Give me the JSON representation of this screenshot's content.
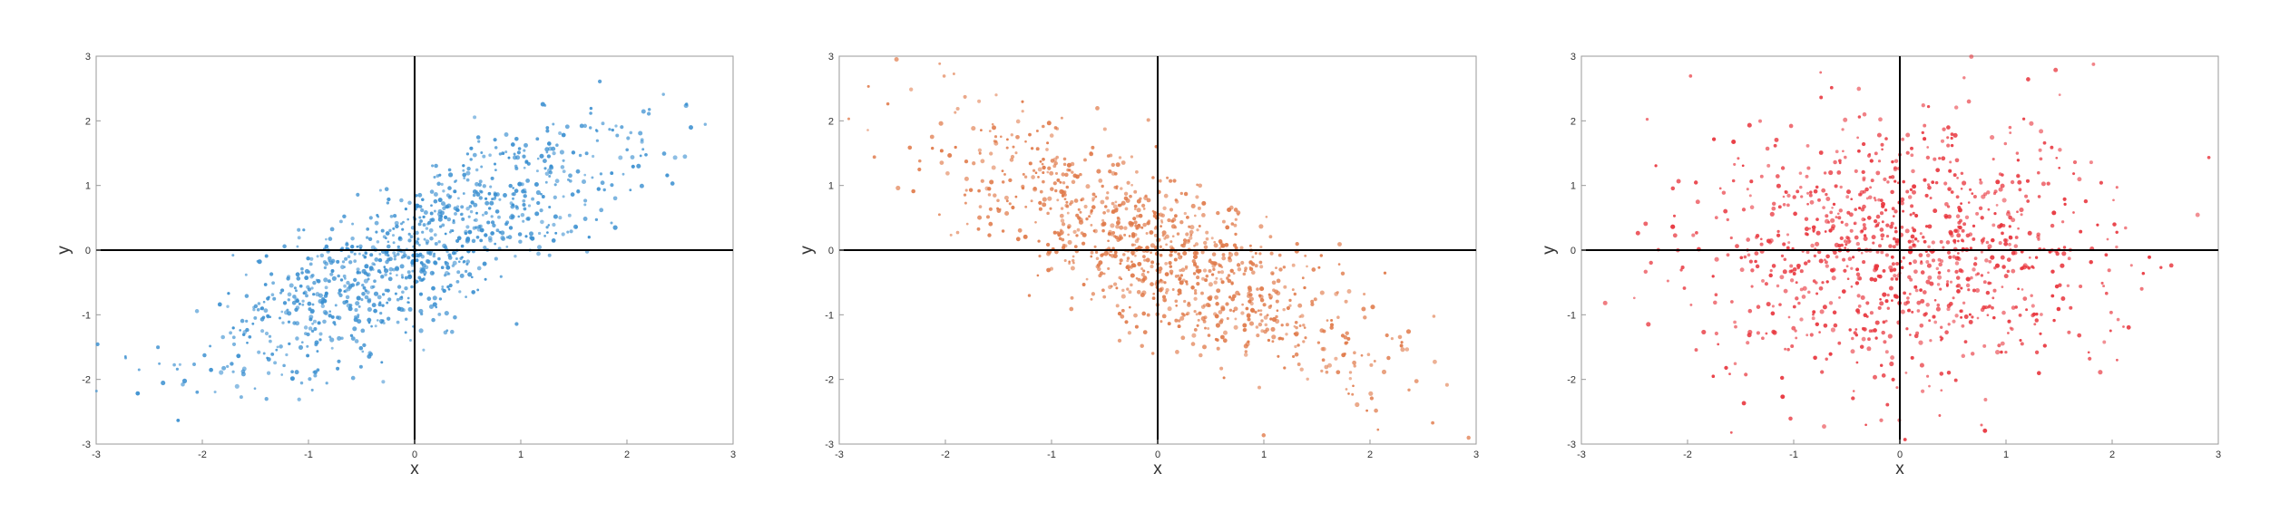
{
  "chart_data": [
    {
      "type": "scatter",
      "title": "",
      "xlabel": "x",
      "ylabel": "y",
      "xlim": [
        -3,
        3
      ],
      "ylim": [
        -3,
        3
      ],
      "xticks": [
        "-3",
        "-2",
        "-1",
        "0",
        "1",
        "2",
        "3"
      ],
      "yticks": [
        "-3",
        "-2",
        "-1",
        "0",
        "1",
        "2",
        "3"
      ],
      "grid": false,
      "legend": "none",
      "color": "#3a8fd0",
      "n_points": 1000,
      "correlation": 0.8,
      "series": [
        {
          "x": [
            -2.6,
            -2.3,
            -1.8,
            -1.2,
            -0.7,
            -0.2,
            0.0,
            0.3,
            0.8,
            1.3,
            1.8,
            2.4
          ],
          "y": [
            -2.3,
            -2.1,
            -1.5,
            -1.1,
            -0.6,
            -0.1,
            0.0,
            0.4,
            0.7,
            1.0,
            1.5,
            2.5
          ]
        }
      ]
    },
    {
      "type": "scatter",
      "title": "",
      "xlabel": "x",
      "ylabel": "y",
      "xlim": [
        -3,
        3
      ],
      "ylim": [
        -3,
        3
      ],
      "xticks": [
        "-3",
        "-2",
        "-1",
        "0",
        "1",
        "2",
        "3"
      ],
      "yticks": [
        "-3",
        "-2",
        "-1",
        "0",
        "1",
        "2",
        "3"
      ],
      "grid": false,
      "legend": "none",
      "color": "#e07a4a",
      "n_points": 1000,
      "correlation": -0.8,
      "series": [
        {
          "x": [
            -2.9,
            -2.4,
            -1.8,
            -1.2,
            -0.7,
            -0.2,
            0.0,
            0.3,
            0.8,
            1.3,
            1.8,
            2.4
          ],
          "y": [
            2.6,
            2.2,
            1.7,
            1.1,
            0.7,
            0.2,
            0.0,
            -0.4,
            -0.7,
            -1.1,
            -1.6,
            -2.6
          ]
        }
      ]
    },
    {
      "type": "scatter",
      "title": "",
      "xlabel": "x",
      "ylabel": "y",
      "xlim": [
        -3,
        3
      ],
      "ylim": [
        -3,
        3
      ],
      "xticks": [
        "-3",
        "-2",
        "-1",
        "0",
        "1",
        "2",
        "3"
      ],
      "yticks": [
        "-3",
        "-2",
        "-1",
        "0",
        "1",
        "2",
        "3"
      ],
      "grid": false,
      "legend": "none",
      "color": "#e8343c",
      "n_points": 1000,
      "correlation": 0.0,
      "series": [
        {
          "x": [
            -2.4,
            -1.8,
            -1.1,
            -0.6,
            -0.2,
            0.0,
            0.3,
            0.7,
            1.2,
            1.8,
            2.5
          ],
          "y": [
            0.1,
            -0.9,
            0.8,
            -1.5,
            1.6,
            0.0,
            -1.2,
            0.9,
            -0.4,
            0.6,
            -0.3
          ]
        }
      ]
    }
  ]
}
